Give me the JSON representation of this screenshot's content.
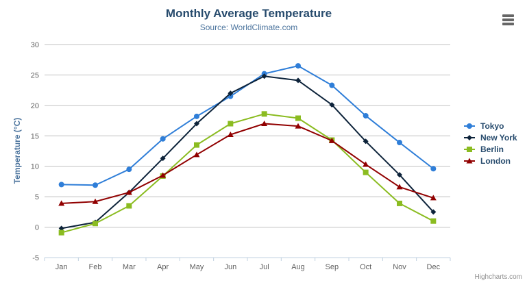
{
  "chart": {
    "title": "Monthly Average Temperature",
    "subtitle": "Source: WorldClimate.com",
    "y_axis_title": "Temperature (°C)",
    "credits": "Highcharts.com",
    "context_menu_icon": "hamburger-icon"
  },
  "chart_data": {
    "type": "line",
    "title": "Monthly Average Temperature",
    "subtitle": "Source: WorldClimate.com",
    "xlabel": "",
    "ylabel": "Temperature (°C)",
    "categories": [
      "Jan",
      "Feb",
      "Mar",
      "Apr",
      "May",
      "Jun",
      "Jul",
      "Aug",
      "Sep",
      "Oct",
      "Nov",
      "Dec"
    ],
    "series": [
      {
        "name": "Tokyo",
        "color": "#2f7ed8",
        "marker": "circle",
        "values": [
          7.0,
          6.9,
          9.5,
          14.5,
          18.2,
          21.5,
          25.2,
          26.5,
          23.3,
          18.3,
          13.9,
          9.6
        ]
      },
      {
        "name": "New York",
        "color": "#0d233a",
        "marker": "diamond",
        "values": [
          -0.2,
          0.8,
          5.7,
          11.3,
          17.0,
          22.0,
          24.8,
          24.1,
          20.1,
          14.1,
          8.6,
          2.5
        ]
      },
      {
        "name": "Berlin",
        "color": "#8bbc21",
        "marker": "square",
        "values": [
          -0.9,
          0.6,
          3.5,
          8.4,
          13.5,
          17.0,
          18.6,
          17.9,
          14.3,
          9.0,
          3.9,
          1.0
        ]
      },
      {
        "name": "London",
        "color": "#910000",
        "marker": "triangle",
        "values": [
          3.9,
          4.2,
          5.7,
          8.5,
          11.9,
          15.2,
          17.0,
          16.6,
          14.2,
          10.3,
          6.6,
          4.8
        ]
      }
    ],
    "ylim": [
      -5,
      30
    ],
    "ytick_step": 5,
    "yticks": [
      "-5",
      "0",
      "5",
      "10",
      "15",
      "20",
      "25",
      "30"
    ],
    "grid": true,
    "legend_position": "right",
    "colors": {
      "grid_line": "#c0c0c0",
      "axis_line": "#c0d0e0",
      "tick_mark": "#c0d0e0",
      "axis_label": "#606060",
      "title_text": "#274b6d",
      "subtitle_text": "#4d759e",
      "legend_text": "#274b6d"
    }
  }
}
